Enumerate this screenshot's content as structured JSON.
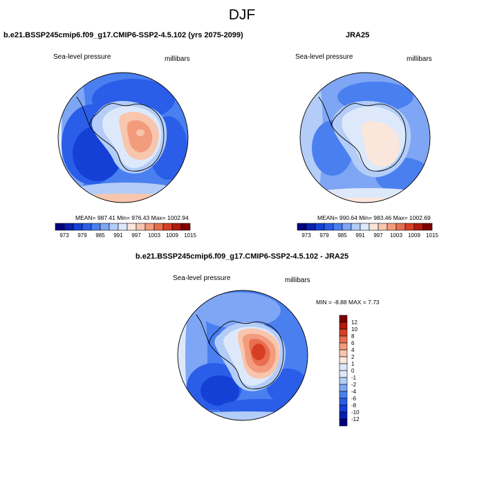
{
  "title": "DJF",
  "palette": [
    "#00007f",
    "#0a1fb0",
    "#1540d6",
    "#2a5ee8",
    "#4a7ff0",
    "#7ea6f5",
    "#b3cdf8",
    "#dde9fb",
    "#fbe6dc",
    "#f8c5ad",
    "#f29c7d",
    "#e86e4f",
    "#d63f24",
    "#b11a0c",
    "#7f0000"
  ],
  "land_shade_colors": {
    "deep": "#1434c8",
    "mid": "#3a6ef0",
    "light": "#a8c6f7",
    "pale": "#dfeafc",
    "warm": "#f7cdb5",
    "hot": "#ee8a66",
    "hotter": "#e5552f"
  },
  "panels": [
    {
      "id": "model",
      "title": "b.e21.BSSP245cmip6.f09_g17.CMIP6-SSP2-4.5.102 (yrs 2075-2099)",
      "left_label": "Sea-level pressure",
      "right_label": "millibars",
      "stats": "MEAN= 987.41   Min= 976.43   Max= 1002.94",
      "colorbar_ticks": [
        "973",
        "979",
        "985",
        "991",
        "997",
        "1003",
        "1009",
        "1015"
      ]
    },
    {
      "id": "obs",
      "title": "JRA25",
      "left_label": "Sea-level pressure",
      "right_label": "millibars",
      "stats": "MEAN= 990.64   Min= 983.46   Max= 1002.69",
      "colorbar_ticks": [
        "973",
        "979",
        "985",
        "991",
        "997",
        "1003",
        "1009",
        "1015"
      ]
    },
    {
      "id": "diff",
      "title": "b.e21.BSSP245cmip6.f09_g17.CMIP6-SSP2-4.5.102 - JRA25",
      "left_label": "Sea-level pressure",
      "right_label": "millibars",
      "stats": "MIN =  -8.88 MAX =   7.73",
      "colorbar_ticks": [
        "12",
        "10",
        "8",
        "6",
        "4",
        "2",
        "1",
        "0",
        "-1",
        "-2",
        "-4",
        "-6",
        "-8",
        "-10",
        "-12"
      ]
    }
  ]
}
